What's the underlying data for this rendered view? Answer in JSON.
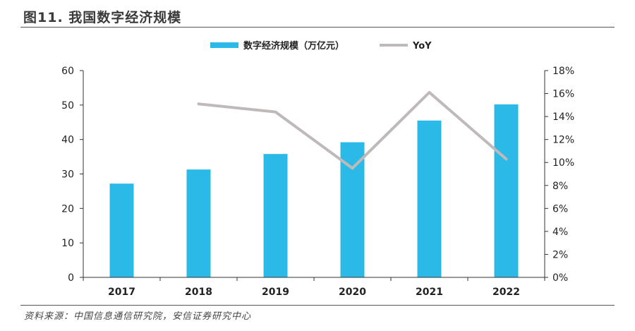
{
  "header": {
    "title": "图11. 我国数字经济规模"
  },
  "source": {
    "text": "资料来源：中国信息通信研究院，安信证券研究中心"
  },
  "colors": {
    "bar": "#2bb9e8",
    "line": "#bfb9b9",
    "axis": "#333333",
    "text": "#222222"
  },
  "chart_data": {
    "type": "bar+line",
    "categories": [
      "2017",
      "2018",
      "2019",
      "2020",
      "2021",
      "2022"
    ],
    "series": [
      {
        "name": "数字经济规模（万亿元）",
        "type": "bar",
        "axis": "left",
        "values": [
          27.2,
          31.3,
          35.8,
          39.2,
          45.5,
          50.2
        ]
      },
      {
        "name": "YoY",
        "type": "line",
        "axis": "right",
        "values": [
          null,
          15.1,
          14.4,
          9.5,
          16.1,
          10.3
        ]
      }
    ],
    "yleft": {
      "min": 0,
      "max": 60,
      "ticks": [
        "0",
        "10",
        "20",
        "30",
        "40",
        "50",
        "60"
      ]
    },
    "yright": {
      "min": 0,
      "max": 18,
      "ticks": [
        "0%",
        "2%",
        "4%",
        "6%",
        "8%",
        "10%",
        "12%",
        "14%",
        "16%",
        "18%"
      ]
    },
    "grid": false,
    "legend": "top-center"
  }
}
